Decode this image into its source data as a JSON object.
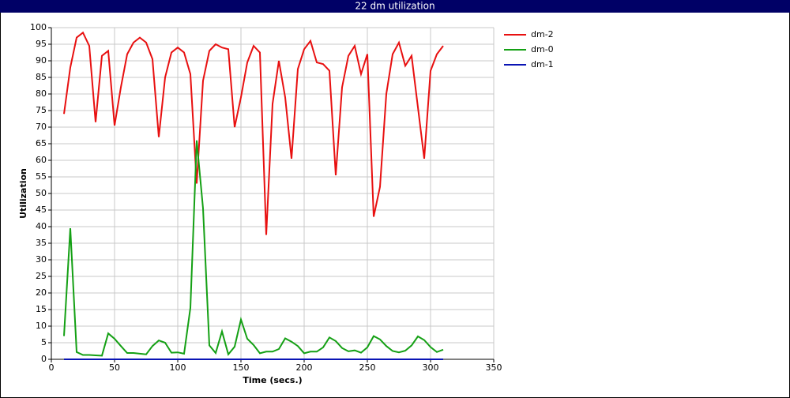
{
  "chart_data": {
    "type": "line",
    "title": "22 dm utilization",
    "x_label": "Time (secs.)",
    "y_label": "Utilization",
    "x": [
      10,
      15,
      20,
      25,
      30,
      35,
      40,
      45,
      50,
      55,
      60,
      65,
      70,
      75,
      80,
      85,
      90,
      95,
      100,
      105,
      110,
      115,
      120,
      125,
      130,
      135,
      140,
      145,
      150,
      155,
      160,
      165,
      170,
      175,
      180,
      185,
      190,
      195,
      200,
      205,
      210,
      215,
      220,
      225,
      230,
      235,
      240,
      245,
      250,
      255,
      260,
      265,
      270,
      275,
      280,
      285,
      290,
      295,
      300,
      305,
      310
    ],
    "series": [
      {
        "name": "dm-2",
        "color": "#e81010",
        "values": [
          74,
          88,
          97,
          98.5,
          94.5,
          71.5,
          91.5,
          93,
          70.5,
          82,
          92,
          95.5,
          97,
          95.5,
          90.5,
          67,
          85,
          92.5,
          94,
          92.5,
          86,
          53,
          84,
          93,
          95,
          94,
          93.5,
          70,
          79,
          89.5,
          94.5,
          92.5,
          37.5,
          77,
          90,
          79,
          60.5,
          87.5,
          93.5,
          96,
          89.5,
          89,
          87,
          55.5,
          82,
          91.5,
          94.5,
          86,
          92,
          43,
          52,
          80,
          92,
          95.5,
          88.5,
          91.5,
          76,
          60.5,
          87,
          92,
          94.5
        ]
      },
      {
        "name": "dm-0",
        "color": "#14a014",
        "values": [
          7,
          39.5,
          2.2,
          1.3,
          1.3,
          1.2,
          1.1,
          7.8,
          6.2,
          4,
          1.9,
          1.9,
          1.7,
          1.5,
          4,
          5.7,
          5,
          2,
          2.1,
          1.7,
          15.5,
          66,
          45.5,
          4.2,
          1.9,
          8.4,
          1.5,
          3.8,
          12,
          6.2,
          4.3,
          1.8,
          2.3,
          2.3,
          3.1,
          6.3,
          5.3,
          4,
          1.8,
          2.3,
          2.3,
          3.6,
          6.6,
          5.5,
          3.4,
          2.4,
          2.7,
          2,
          3.6,
          7,
          6,
          4,
          2.5,
          2.1,
          2.6,
          4.2,
          6.9,
          5.8,
          3.7,
          2.2,
          2.9
        ]
      },
      {
        "name": "dm-1",
        "color": "#0a14b4",
        "values": [
          0,
          0,
          0,
          0,
          0,
          0,
          0,
          0,
          0,
          0,
          0,
          0,
          0,
          0,
          0,
          0,
          0,
          0,
          0,
          0,
          0,
          0,
          0,
          0,
          0,
          0,
          0,
          0,
          0,
          0,
          0,
          0,
          0,
          0,
          0,
          0,
          0,
          0,
          0,
          0,
          0,
          0,
          0,
          0,
          0,
          0,
          0,
          0,
          0,
          0,
          0,
          0,
          0,
          0,
          0,
          0,
          0,
          0,
          0,
          0,
          0
        ]
      }
    ],
    "xlim": [
      0,
      350
    ],
    "xticks": [
      0,
      50,
      100,
      150,
      200,
      250,
      300,
      350
    ],
    "ylim": [
      0,
      100
    ],
    "yticks": [
      0,
      5,
      10,
      15,
      20,
      25,
      30,
      35,
      40,
      45,
      50,
      55,
      60,
      65,
      70,
      75,
      80,
      85,
      90,
      95,
      100
    ],
    "grid": true,
    "legend": "right"
  }
}
